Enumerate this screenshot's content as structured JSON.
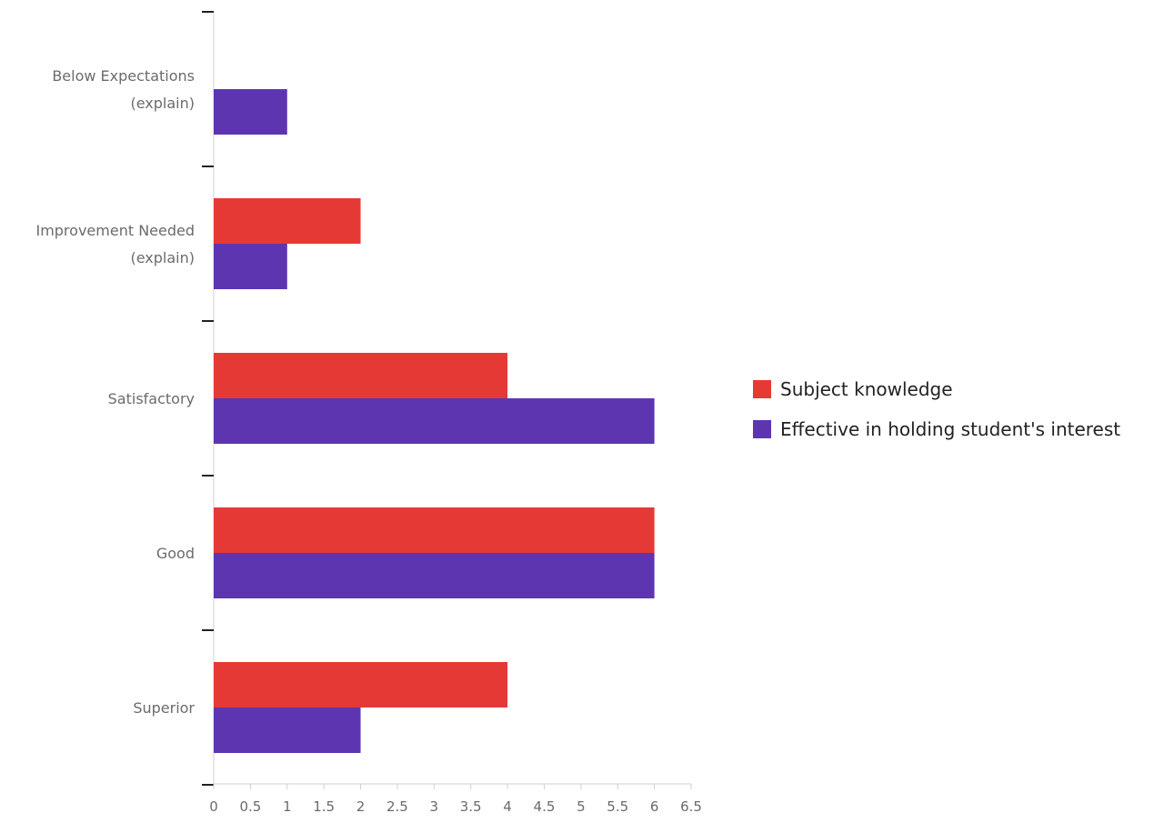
{
  "chart_data": {
    "type": "bar",
    "orientation": "horizontal",
    "categories": [
      [
        "Below Expectations",
        "(explain)"
      ],
      [
        "Improvement Needed",
        "(explain)"
      ],
      [
        "Satisfactory"
      ],
      [
        "Good"
      ],
      [
        "Superior"
      ]
    ],
    "series": [
      {
        "name": "Subject knowledge",
        "color": "#e53935",
        "values": [
          0,
          2,
          4,
          6,
          4
        ]
      },
      {
        "name": "Effective in holding student's interest",
        "color": "#5e35b1",
        "values": [
          1,
          1,
          6,
          6,
          2
        ]
      }
    ],
    "xlim": [
      0,
      6.5
    ],
    "xticks": [
      "0",
      "0.5",
      "1",
      "1.5",
      "2",
      "2.5",
      "3",
      "3.5",
      "4",
      "4.5",
      "5",
      "5.5",
      "6",
      "6.5"
    ],
    "grid": false,
    "legend_position": "right"
  }
}
